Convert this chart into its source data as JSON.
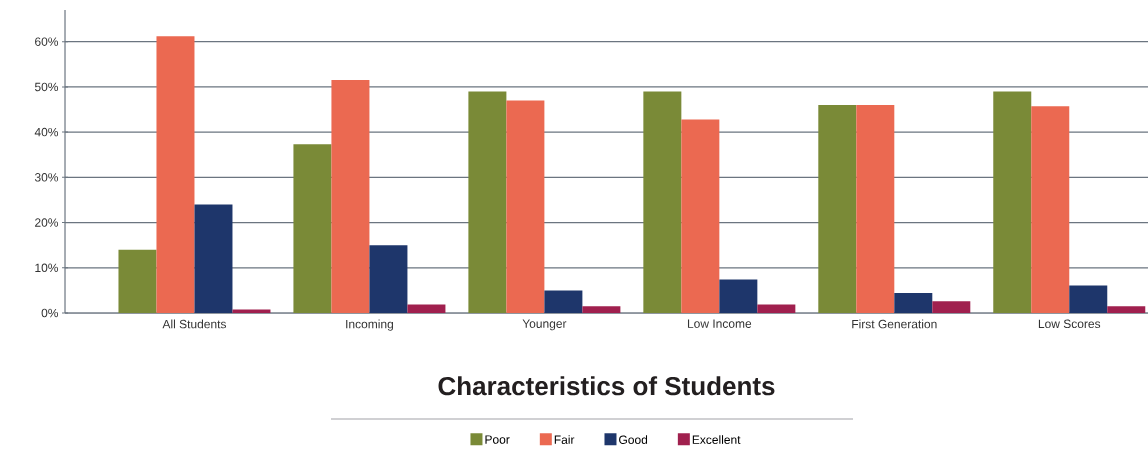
{
  "chart_data": {
    "type": "bar",
    "title": "Characteristics of Students",
    "categories": [
      "All Students",
      "Incoming",
      "Younger",
      "Low Income",
      "First Generation",
      "Low Scores"
    ],
    "series": [
      {
        "name": "Poor",
        "color": "#7a8a37",
        "values": [
          14,
          37.3,
          49,
          49,
          46,
          49
        ]
      },
      {
        "name": "Fair",
        "color": "#eb6951",
        "values": [
          61.2,
          51.5,
          47,
          42.8,
          46,
          45.7
        ]
      },
      {
        "name": "Good",
        "color": "#1e366b",
        "values": [
          24,
          15,
          5,
          7.4,
          4.4,
          6.1
        ]
      },
      {
        "name": "Excellent",
        "color": "#a0204e",
        "values": [
          0.8,
          1.9,
          1.5,
          1.9,
          2.6,
          1.5
        ]
      }
    ],
    "ylim": [
      0,
      67
    ],
    "yticks": [
      {
        "value": 0,
        "label": "0%"
      },
      {
        "value": 10,
        "label": "10%"
      },
      {
        "value": 20,
        "label": "20%"
      },
      {
        "value": 30,
        "label": "30%"
      },
      {
        "value": 40,
        "label": "40%"
      },
      {
        "value": 50,
        "label": "50%"
      },
      {
        "value": 60,
        "label": "60%"
      }
    ],
    "grid": "y",
    "legend": "bottom"
  }
}
